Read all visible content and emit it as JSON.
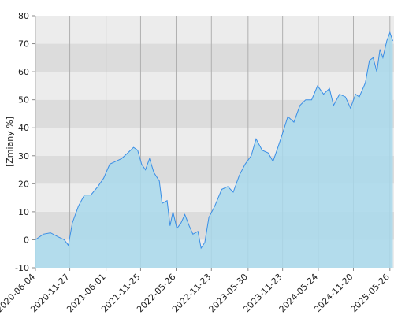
{
  "chart_data": {
    "type": "area",
    "y_label": "[Zmiany %]",
    "x": [
      "2020-06-04",
      "2020-07-15",
      "2020-08-20",
      "2020-09-30",
      "2020-10-30",
      "2020-11-20",
      "2020-12-10",
      "2021-01-10",
      "2021-02-10",
      "2021-03-15",
      "2021-04-20",
      "2021-05-20",
      "2021-06-20",
      "2021-07-20",
      "2021-08-20",
      "2021-09-20",
      "2021-10-20",
      "2021-11-10",
      "2021-11-30",
      "2021-12-20",
      "2022-01-10",
      "2022-02-01",
      "2022-03-01",
      "2022-03-15",
      "2022-04-10",
      "2022-04-25",
      "2022-05-10",
      "2022-05-30",
      "2022-06-20",
      "2022-07-10",
      "2022-08-01",
      "2022-08-20",
      "2022-09-15",
      "2022-10-01",
      "2022-10-20",
      "2022-11-10",
      "2022-12-10",
      "2023-01-15",
      "2023-02-15",
      "2023-03-15",
      "2023-04-15",
      "2023-05-15",
      "2023-06-15",
      "2023-07-10",
      "2023-08-10",
      "2023-09-10",
      "2023-10-05",
      "2023-10-30",
      "2023-11-23",
      "2023-12-20",
      "2024-01-20",
      "2024-02-20",
      "2024-03-20",
      "2024-04-20",
      "2024-05-20",
      "2024-06-20",
      "2024-07-20",
      "2024-08-10",
      "2024-09-10",
      "2024-10-10",
      "2024-11-05",
      "2024-12-01",
      "2024-12-20",
      "2025-01-20",
      "2025-02-10",
      "2025-03-01",
      "2025-03-20",
      "2025-04-05",
      "2025-04-20",
      "2025-05-10",
      "2025-05-26",
      "2025-06-10"
    ],
    "values": [
      0,
      2,
      2.5,
      1,
      0,
      -2,
      6,
      12,
      16,
      16,
      19,
      22,
      27,
      28,
      29,
      31,
      33,
      32,
      27,
      25,
      29,
      24,
      21,
      13,
      14,
      5,
      10,
      4,
      6,
      9,
      5,
      2,
      3,
      -3,
      -1,
      8,
      12,
      18,
      19,
      17,
      23,
      27,
      30,
      36,
      32,
      31,
      28,
      33,
      38,
      44,
      42,
      48,
      50,
      50,
      55,
      52,
      54,
      48,
      52,
      51,
      47,
      52,
      51,
      56,
      64,
      65,
      60,
      68,
      65,
      71,
      74,
      71
    ],
    "color": "#3a8ee6",
    "fill": "#a9d9ec",
    "xlim": [
      "2020-06-04",
      "2025-06-16"
    ],
    "xticks": [
      "2020-06-04",
      "2020-11-27",
      "2021-06-01",
      "2021-11-25",
      "2022-05-26",
      "2022-11-23",
      "2023-05-30",
      "2023-11-23",
      "2024-05-24",
      "2024-11-20",
      "2025-05-26"
    ],
    "ylim": [
      -10,
      80
    ],
    "yticks": [
      -10,
      0,
      10,
      20,
      30,
      40,
      50,
      60,
      70,
      80
    ],
    "grid": true
  }
}
